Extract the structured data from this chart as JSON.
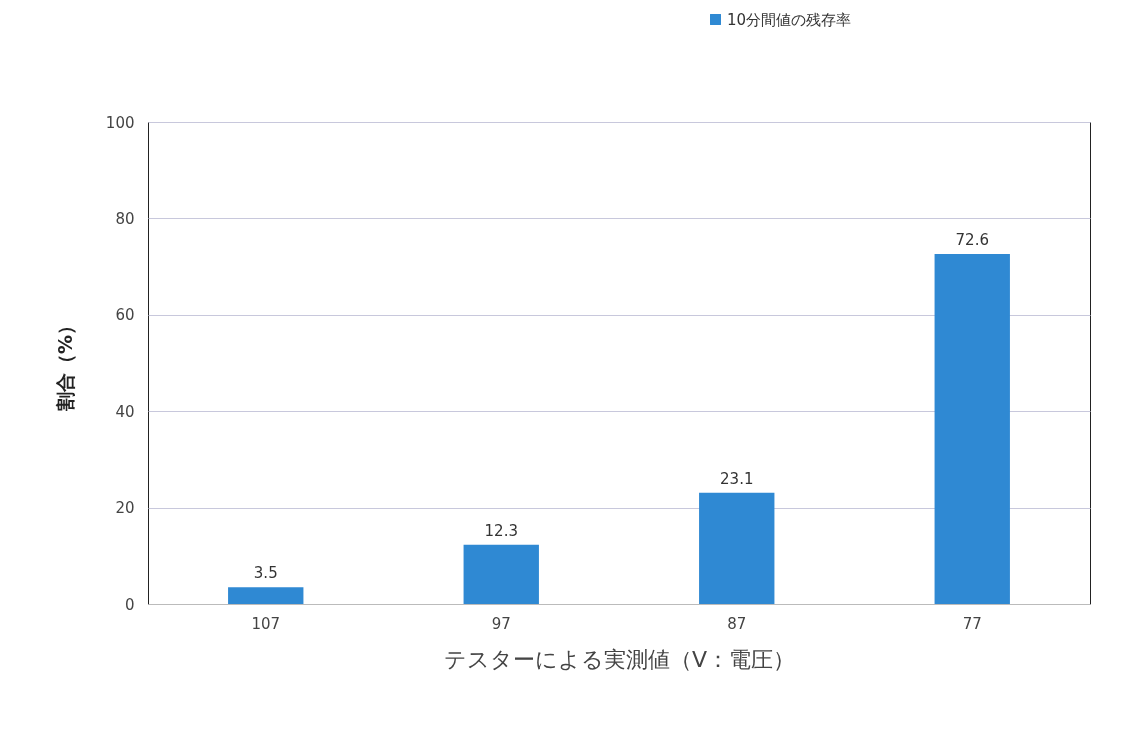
{
  "chart_data": {
    "type": "bar",
    "xlabel": "テスターによる実測値（V：電圧）",
    "ylabel": "割合（%）",
    "categories": [
      "107",
      "97",
      "87",
      "77"
    ],
    "series": [
      {
        "name": "10分間値の残存率",
        "color": "#2f89d3",
        "values": [
          3.5,
          12.3,
          23.1,
          72.6
        ]
      }
    ],
    "ylim": [
      0,
      100
    ],
    "yticks": [
      0,
      20,
      40,
      60,
      80,
      100
    ],
    "grid": "y",
    "legend": "top",
    "data_labels": true
  }
}
